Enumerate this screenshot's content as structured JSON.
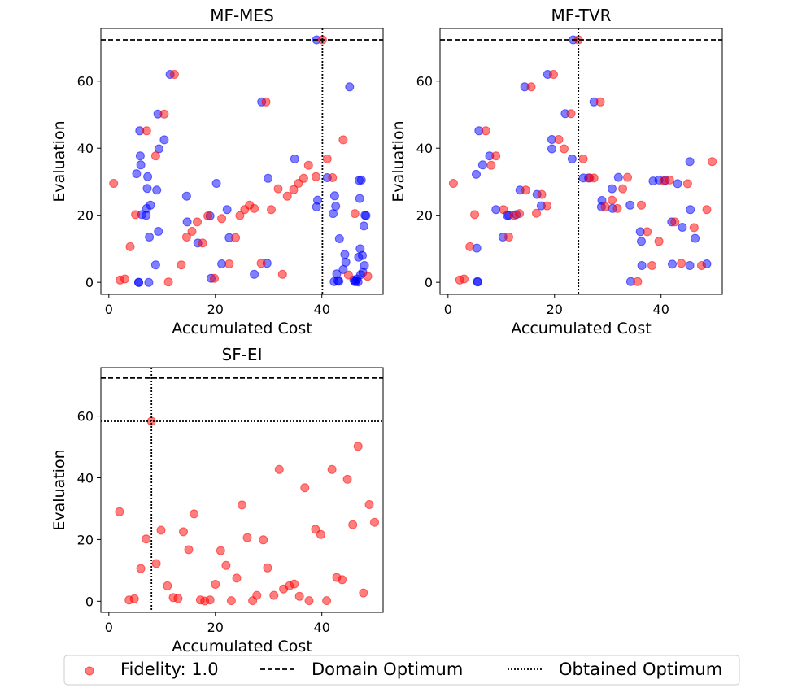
{
  "chart_data": [
    {
      "type": "scatter",
      "title": "MF-MES",
      "xlabel": "Accumulated Cost",
      "ylabel": "Evaluation",
      "xlim": [
        -1.5,
        51.5
      ],
      "ylim": [
        -3.6,
        75.7
      ],
      "xticks": [
        0,
        20,
        40
      ],
      "yticks": [
        0,
        20,
        40,
        60
      ],
      "domain_optimum": 72.3,
      "obtained_optimum_x": 40.1,
      "obtained_optimum_y": null,
      "series": [
        {
          "color": "#0000ff",
          "points": [
            [
              5.2,
              32.4
            ],
            [
              5.6,
              0.0
            ],
            [
              5.6,
              0.0
            ],
            [
              5.8,
              45.2
            ],
            [
              5.9,
              37.7
            ],
            [
              6.0,
              35.0
            ],
            [
              6.2,
              20.2
            ],
            [
              7.0,
              20.0
            ],
            [
              7.1,
              22.0
            ],
            [
              7.2,
              28.0
            ],
            [
              7.3,
              31.5
            ],
            [
              7.5,
              0.0
            ],
            [
              7.6,
              13.5
            ],
            [
              7.8,
              23.0
            ],
            [
              8.8,
              5.2
            ],
            [
              9.0,
              27.5
            ],
            [
              9.2,
              50.2
            ],
            [
              9.3,
              15.2
            ],
            [
              9.4,
              39.8
            ],
            [
              10.4,
              42.5
            ],
            [
              11.5,
              62.0
            ],
            [
              14.6,
              25.7
            ],
            [
              14.7,
              18.0
            ],
            [
              16.7,
              11.7
            ],
            [
              19.0,
              19.8
            ],
            [
              19.2,
              1.2
            ],
            [
              20.2,
              29.5
            ],
            [
              21.2,
              5.5
            ],
            [
              22.2,
              21.7
            ],
            [
              22.6,
              13.3
            ],
            [
              27.3,
              2.4
            ],
            [
              28.7,
              53.8
            ],
            [
              29.7,
              5.7
            ],
            [
              29.9,
              31.0
            ],
            [
              34.9,
              36.8
            ],
            [
              39.0,
              22.5
            ],
            [
              39.0,
              72.3
            ],
            [
              39.2,
              24.5
            ],
            [
              41.0,
              31.2
            ],
            [
              42.1,
              20.5
            ],
            [
              42.3,
              0.2
            ],
            [
              42.4,
              25.8
            ],
            [
              42.6,
              22.7
            ],
            [
              42.8,
              2.5
            ],
            [
              43.0,
              0.5
            ],
            [
              43.2,
              0.3
            ],
            [
              43.3,
              13.0
            ],
            [
              44.0,
              3.8
            ],
            [
              44.3,
              8.3
            ],
            [
              44.5,
              6.0
            ],
            [
              45.2,
              58.3
            ],
            [
              46.0,
              0.7
            ],
            [
              46.2,
              0.2
            ],
            [
              46.4,
              0.4
            ],
            [
              46.6,
              1.0
            ],
            [
              46.8,
              0.1
            ],
            [
              46.9,
              7.5
            ],
            [
              47.0,
              30.4
            ],
            [
              47.1,
              25.0
            ],
            [
              47.2,
              10.0
            ],
            [
              47.3,
              2.3
            ],
            [
              47.4,
              30.5
            ],
            [
              47.6,
              8.0
            ],
            [
              47.7,
              3.0
            ],
            [
              47.9,
              16.8
            ],
            [
              48.0,
              5.0
            ],
            [
              48.1,
              20.0
            ],
            [
              48.3,
              19.9
            ]
          ]
        },
        {
          "color": "#ff0000",
          "points": [
            [
              0.9,
              29.5
            ],
            [
              2.1,
              0.7
            ],
            [
              3.0,
              1.0
            ],
            [
              4.0,
              10.6
            ],
            [
              5.0,
              20.2
            ],
            [
              7.1,
              45.2
            ],
            [
              8.8,
              37.7
            ],
            [
              10.4,
              50.2
            ],
            [
              11.2,
              0.1
            ],
            [
              12.3,
              62.0
            ],
            [
              13.6,
              5.2
            ],
            [
              14.6,
              13.5
            ],
            [
              15.6,
              15.2
            ],
            [
              16.6,
              18.0
            ],
            [
              17.6,
              11.7
            ],
            [
              18.6,
              19.8
            ],
            [
              19.8,
              1.2
            ],
            [
              21.2,
              19.0
            ],
            [
              22.6,
              5.5
            ],
            [
              23.8,
              13.3
            ],
            [
              24.6,
              19.9
            ],
            [
              25.5,
              21.7
            ],
            [
              26.4,
              23.0
            ],
            [
              27.3,
              22.0
            ],
            [
              28.6,
              5.7
            ],
            [
              29.5,
              53.8
            ],
            [
              30.5,
              21.7
            ],
            [
              31.8,
              27.9
            ],
            [
              32.6,
              2.4
            ],
            [
              33.5,
              25.7
            ],
            [
              34.7,
              27.6
            ],
            [
              35.6,
              29.5
            ],
            [
              36.6,
              31.0
            ],
            [
              37.5,
              34.9
            ],
            [
              38.9,
              31.5
            ],
            [
              40.1,
              72.3
            ],
            [
              41.0,
              36.8
            ],
            [
              42.0,
              31.2
            ],
            [
              44.0,
              42.5
            ],
            [
              45.0,
              2.2
            ],
            [
              46.2,
              20.5
            ],
            [
              48.6,
              1.8
            ]
          ]
        }
      ]
    },
    {
      "type": "scatter",
      "title": "MF-TVR",
      "xlabel": "Accumulated Cost",
      "ylabel": "Evaluation",
      "xlim": [
        -1.5,
        51.5
      ],
      "ylim": [
        -3.6,
        75.7
      ],
      "xticks": [
        0,
        20,
        40
      ],
      "yticks": [
        0,
        20,
        40,
        60
      ],
      "domain_optimum": 72.3,
      "obtained_optimum_x": 24.5,
      "obtained_optimum_y": null,
      "series": [
        {
          "color": "#0000ff",
          "points": [
            [
              5.3,
              32.2
            ],
            [
              5.4,
              10.2
            ],
            [
              5.5,
              0.2
            ],
            [
              5.6,
              0.1
            ],
            [
              5.8,
              45.2
            ],
            [
              6.5,
              35.0
            ],
            [
              7.8,
              37.7
            ],
            [
              9.0,
              21.7
            ],
            [
              10.3,
              13.5
            ],
            [
              11.1,
              20.0
            ],
            [
              11.4,
              20.0
            ],
            [
              12.8,
              20.2
            ],
            [
              13.5,
              27.5
            ],
            [
              14.4,
              58.3
            ],
            [
              16.7,
              26.2
            ],
            [
              17.5,
              22.8
            ],
            [
              18.7,
              62.0
            ],
            [
              19.5,
              42.6
            ],
            [
              19.5,
              39.8
            ],
            [
              22.0,
              50.3
            ],
            [
              23.3,
              36.8
            ],
            [
              23.5,
              72.3
            ],
            [
              25.4,
              31.1
            ],
            [
              26.4,
              31.1
            ],
            [
              27.4,
              53.8
            ],
            [
              28.8,
              22.5
            ],
            [
              28.9,
              24.4
            ],
            [
              30.9,
              22.0
            ],
            [
              30.8,
              27.9
            ],
            [
              32.0,
              31.3
            ],
            [
              34.2,
              23.0
            ],
            [
              34.3,
              0.2
            ],
            [
              36.1,
              15.1
            ],
            [
              36.3,
              12.2
            ],
            [
              36.4,
              5.0
            ],
            [
              38.5,
              30.2
            ],
            [
              39.6,
              30.5
            ],
            [
              40.8,
              30.4
            ],
            [
              42.0,
              18.0
            ],
            [
              42.1,
              5.4
            ],
            [
              43.1,
              29.4
            ],
            [
              44.0,
              16.4
            ],
            [
              45.4,
              36.0
            ],
            [
              45.5,
              21.7
            ],
            [
              45.4,
              5.0
            ],
            [
              46.4,
              13.1
            ],
            [
              48.6,
              5.5
            ]
          ]
        },
        {
          "color": "#ff0000",
          "points": [
            [
              1.0,
              29.5
            ],
            [
              2.2,
              0.7
            ],
            [
              3.0,
              1.0
            ],
            [
              4.1,
              10.6
            ],
            [
              5.0,
              20.2
            ],
            [
              7.1,
              45.2
            ],
            [
              8.1,
              34.9
            ],
            [
              9.0,
              37.7
            ],
            [
              10.4,
              21.7
            ],
            [
              11.4,
              13.5
            ],
            [
              12.4,
              20.0
            ],
            [
              13.4,
              20.5
            ],
            [
              14.6,
              27.5
            ],
            [
              15.6,
              58.3
            ],
            [
              16.6,
              20.6
            ],
            [
              17.6,
              26.2
            ],
            [
              18.6,
              22.8
            ],
            [
              19.8,
              62.0
            ],
            [
              20.8,
              42.6
            ],
            [
              21.8,
              39.8
            ],
            [
              23.1,
              50.3
            ],
            [
              24.5,
              72.3
            ],
            [
              25.4,
              36.8
            ],
            [
              26.6,
              31.1
            ],
            [
              27.4,
              31.1
            ],
            [
              28.6,
              53.8
            ],
            [
              29.5,
              22.5
            ],
            [
              30.8,
              24.5
            ],
            [
              31.8,
              22.0
            ],
            [
              32.8,
              27.9
            ],
            [
              33.7,
              31.3
            ],
            [
              35.6,
              0.2
            ],
            [
              36.3,
              23.0
            ],
            [
              37.4,
              15.1
            ],
            [
              38.3,
              5.0
            ],
            [
              39.6,
              12.2
            ],
            [
              40.5,
              30.2
            ],
            [
              41.6,
              30.5
            ],
            [
              42.6,
              18.0
            ],
            [
              43.8,
              5.7
            ],
            [
              45.0,
              29.4
            ],
            [
              46.2,
              16.3
            ],
            [
              47.6,
              5.0
            ],
            [
              48.6,
              21.7
            ],
            [
              49.6,
              36.0
            ]
          ]
        }
      ]
    },
    {
      "type": "scatter",
      "title": "SF-EI",
      "xlabel": "Accumulated Cost",
      "ylabel": "Evaluation",
      "xlim": [
        -1.5,
        51.5
      ],
      "ylim": [
        -3.6,
        75.7
      ],
      "xticks": [
        0,
        20,
        40
      ],
      "yticks": [
        0,
        20,
        40,
        60
      ],
      "domain_optimum": 72.3,
      "obtained_optimum_x": 8.0,
      "obtained_optimum_y": 58.3,
      "series": [
        {
          "color": "#ff0000",
          "points": [
            [
              2.0,
              29.0
            ],
            [
              3.8,
              0.4
            ],
            [
              4.8,
              0.8
            ],
            [
              6.0,
              10.6
            ],
            [
              7.0,
              20.2
            ],
            [
              8.0,
              58.3
            ],
            [
              8.9,
              12.2
            ],
            [
              9.8,
              23.0
            ],
            [
              11.0,
              5.0
            ],
            [
              12.1,
              1.2
            ],
            [
              13.0,
              0.9
            ],
            [
              14.0,
              22.5
            ],
            [
              15.0,
              16.7
            ],
            [
              16.0,
              28.3
            ],
            [
              17.2,
              0.4
            ],
            [
              18.0,
              0.1
            ],
            [
              19.0,
              0.4
            ],
            [
              20.0,
              5.5
            ],
            [
              21.0,
              16.4
            ],
            [
              22.0,
              11.6
            ],
            [
              23.0,
              0.2
            ],
            [
              24.0,
              7.5
            ],
            [
              25.0,
              31.2
            ],
            [
              26.0,
              20.6
            ],
            [
              27.0,
              0.2
            ],
            [
              27.8,
              1.9
            ],
            [
              29.0,
              19.9
            ],
            [
              29.8,
              10.8
            ],
            [
              31.0,
              1.9
            ],
            [
              32.0,
              42.7
            ],
            [
              32.8,
              4.0
            ],
            [
              33.9,
              5.0
            ],
            [
              34.8,
              5.6
            ],
            [
              35.8,
              1.6
            ],
            [
              36.8,
              36.8
            ],
            [
              37.6,
              0.2
            ],
            [
              38.8,
              23.3
            ],
            [
              39.8,
              21.6
            ],
            [
              40.9,
              0.2
            ],
            [
              41.9,
              42.7
            ],
            [
              42.8,
              7.7
            ],
            [
              43.8,
              7.0
            ],
            [
              44.8,
              39.5
            ],
            [
              45.8,
              24.8
            ],
            [
              46.8,
              50.2
            ],
            [
              47.8,
              2.7
            ],
            [
              48.9,
              31.3
            ],
            [
              49.9,
              25.6
            ]
          ]
        }
      ]
    }
  ],
  "legend": {
    "placement": "bottom-center",
    "items": [
      {
        "label": "Fidelity: 1.0",
        "marker": "circle",
        "color": "#ff0000"
      },
      {
        "label": "Domain Optimum",
        "marker": "dashed-line",
        "color": "#000000"
      },
      {
        "label": "Obtained Optimum",
        "marker": "dotted-line",
        "color": "#000000"
      }
    ]
  }
}
